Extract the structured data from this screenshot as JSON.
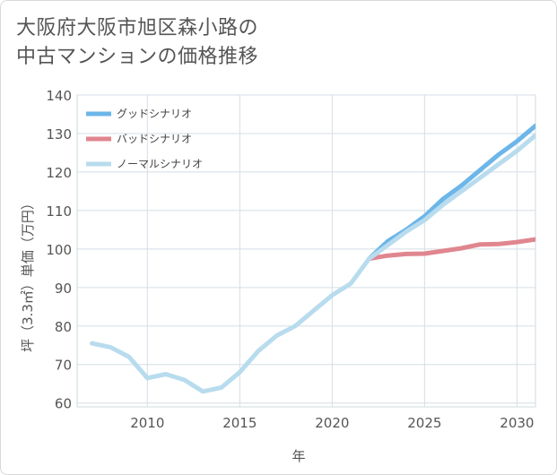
{
  "title_line1": "大阪府大阪市旭区森小路の",
  "title_line2": "中古マンションの価格推移",
  "chart_data": {
    "type": "line",
    "xlabel": "年",
    "ylabel": "坪（3.3㎡）単価（万円）",
    "xlim": [
      2006.2,
      2031
    ],
    "ylim": [
      59,
      140
    ],
    "xticks": [
      2010,
      2015,
      2020,
      2025,
      2030
    ],
    "yticks": [
      60,
      70,
      80,
      90,
      100,
      110,
      120,
      130,
      140
    ],
    "grid": true,
    "legend": "top-left",
    "series": [
      {
        "name": "グッドシナリオ",
        "color": "#6cb6e9",
        "x": [
          2022,
          2023,
          2024,
          2025,
          2026,
          2027,
          2028,
          2029,
          2030,
          2031
        ],
        "y": [
          97.5,
          102,
          105,
          108.5,
          113,
          116.5,
          120.5,
          124.5,
          128,
          132
        ]
      },
      {
        "name": "バッドシナリオ",
        "color": "#e0868f",
        "x": [
          2022,
          2023,
          2024,
          2025,
          2026,
          2027,
          2028,
          2029,
          2030,
          2031
        ],
        "y": [
          97.5,
          98.3,
          98.7,
          98.8,
          99.5,
          100.2,
          101.2,
          101.3,
          101.8,
          102.5
        ]
      },
      {
        "name": "ノーマルシナリオ",
        "color": "#b8dcee",
        "x": [
          2007,
          2008,
          2009,
          2010,
          2011,
          2012,
          2013,
          2014,
          2015,
          2016,
          2017,
          2018,
          2019,
          2020,
          2021,
          2022,
          2023,
          2024,
          2025,
          2026,
          2027,
          2028,
          2029,
          2030,
          2031
        ],
        "y": [
          75.5,
          74.5,
          72,
          66.5,
          67.5,
          66,
          63,
          64,
          68,
          73.5,
          77.5,
          80,
          84,
          88,
          91,
          97.5,
          101,
          104.5,
          107.5,
          111.5,
          115,
          118.5,
          122,
          125.5,
          129.5
        ]
      }
    ]
  }
}
